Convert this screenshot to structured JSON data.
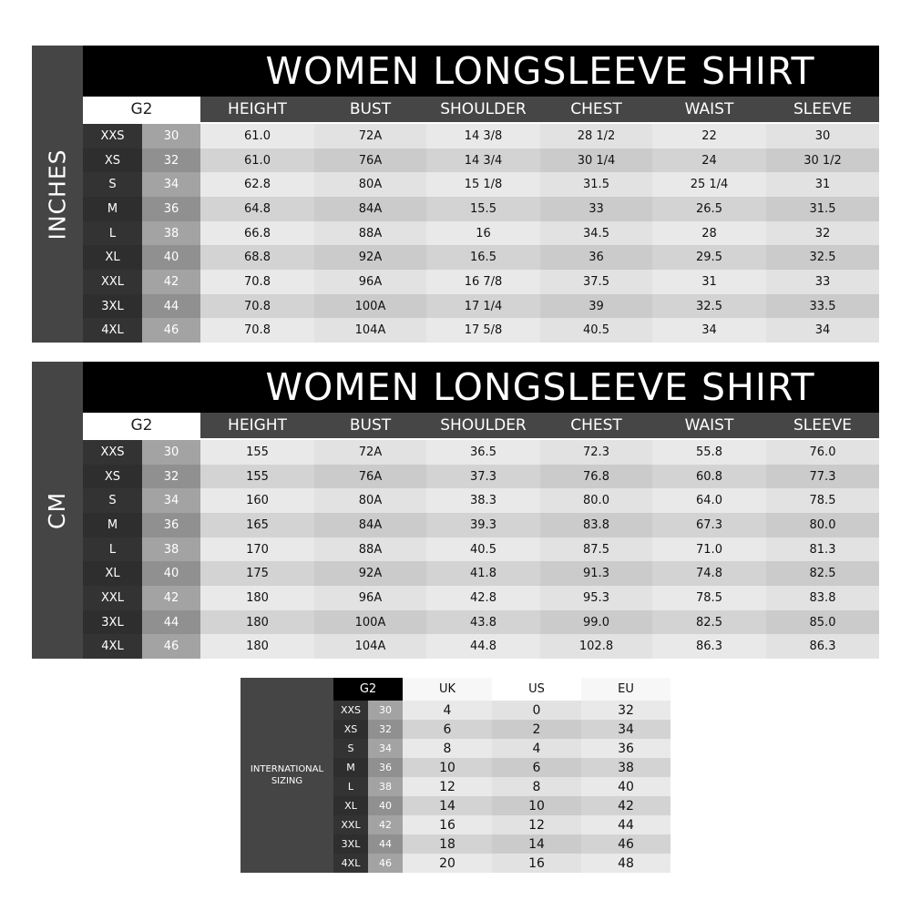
{
  "tables": [
    {
      "unit_label": "INCHES",
      "title": "WOMEN LONGSLEEVE SHIRT",
      "g2_label": "G2",
      "columns": [
        "HEIGHT",
        "BUST",
        "SHOULDER",
        "CHEST",
        "WAIST",
        "SLEEVE"
      ],
      "rows": [
        {
          "size": "XXS",
          "g2": "30",
          "values": [
            "61.0",
            "72A",
            "14 3/8",
            "28 1/2",
            "22",
            "30"
          ]
        },
        {
          "size": "XS",
          "g2": "32",
          "values": [
            "61.0",
            "76A",
            "14 3/4",
            "30 1/4",
            "24",
            "30 1/2"
          ]
        },
        {
          "size": "S",
          "g2": "34",
          "values": [
            "62.8",
            "80A",
            "15 1/8",
            "31.5",
            "25 1/4",
            "31"
          ]
        },
        {
          "size": "M",
          "g2": "36",
          "values": [
            "64.8",
            "84A",
            "15.5",
            "33",
            "26.5",
            "31.5"
          ]
        },
        {
          "size": "L",
          "g2": "38",
          "values": [
            "66.8",
            "88A",
            "16",
            "34.5",
            "28",
            "32"
          ]
        },
        {
          "size": "XL",
          "g2": "40",
          "values": [
            "68.8",
            "92A",
            "16.5",
            "36",
            "29.5",
            "32.5"
          ]
        },
        {
          "size": "XXL",
          "g2": "42",
          "values": [
            "70.8",
            "96A",
            "16 7/8",
            "37.5",
            "31",
            "33"
          ]
        },
        {
          "size": "3XL",
          "g2": "44",
          "values": [
            "70.8",
            "100A",
            "17 1/4",
            "39",
            "32.5",
            "33.5"
          ]
        },
        {
          "size": "4XL",
          "g2": "46",
          "values": [
            "70.8",
            "104A",
            "17 5/8",
            "40.5",
            "34",
            "34"
          ]
        }
      ]
    },
    {
      "unit_label": "CM",
      "title": "WOMEN LONGSLEEVE SHIRT",
      "g2_label": "G2",
      "columns": [
        "HEIGHT",
        "BUST",
        "SHOULDER",
        "CHEST",
        "WAIST",
        "SLEEVE"
      ],
      "rows": [
        {
          "size": "XXS",
          "g2": "30",
          "values": [
            "155",
            "72A",
            "36.5",
            "72.3",
            "55.8",
            "76.0"
          ]
        },
        {
          "size": "XS",
          "g2": "32",
          "values": [
            "155",
            "76A",
            "37.3",
            "76.8",
            "60.8",
            "77.3"
          ]
        },
        {
          "size": "S",
          "g2": "34",
          "values": [
            "160",
            "80A",
            "38.3",
            "80.0",
            "64.0",
            "78.5"
          ]
        },
        {
          "size": "M",
          "g2": "36",
          "values": [
            "165",
            "84A",
            "39.3",
            "83.8",
            "67.3",
            "80.0"
          ]
        },
        {
          "size": "L",
          "g2": "38",
          "values": [
            "170",
            "88A",
            "40.5",
            "87.5",
            "71.0",
            "81.3"
          ]
        },
        {
          "size": "XL",
          "g2": "40",
          "values": [
            "175",
            "92A",
            "41.8",
            "91.3",
            "74.8",
            "82.5"
          ]
        },
        {
          "size": "XXL",
          "g2": "42",
          "values": [
            "180",
            "96A",
            "42.8",
            "95.3",
            "78.5",
            "83.8"
          ]
        },
        {
          "size": "3XL",
          "g2": "44",
          "values": [
            "180",
            "100A",
            "43.8",
            "99.0",
            "82.5",
            "85.0"
          ]
        },
        {
          "size": "4XL",
          "g2": "46",
          "values": [
            "180",
            "104A",
            "44.8",
            "102.8",
            "86.3",
            "86.3"
          ]
        }
      ]
    }
  ],
  "international": {
    "label": "INTERNATIONAL SIZING",
    "g2_label": "G2",
    "columns": [
      "UK",
      "US",
      "EU"
    ],
    "rows": [
      {
        "size": "XXS",
        "g2": "30",
        "values": [
          "4",
          "0",
          "32"
        ]
      },
      {
        "size": "XS",
        "g2": "32",
        "values": [
          "6",
          "2",
          "34"
        ]
      },
      {
        "size": "S",
        "g2": "34",
        "values": [
          "8",
          "4",
          "36"
        ]
      },
      {
        "size": "M",
        "g2": "36",
        "values": [
          "10",
          "6",
          "38"
        ]
      },
      {
        "size": "L",
        "g2": "38",
        "values": [
          "12",
          "8",
          "40"
        ]
      },
      {
        "size": "XL",
        "g2": "40",
        "values": [
          "14",
          "10",
          "42"
        ]
      },
      {
        "size": "XXL",
        "g2": "42",
        "values": [
          "16",
          "12",
          "44"
        ]
      },
      {
        "size": "3XL",
        "g2": "44",
        "values": [
          "18",
          "14",
          "46"
        ]
      },
      {
        "size": "4XL",
        "g2": "46",
        "values": [
          "20",
          "16",
          "48"
        ]
      }
    ]
  }
}
